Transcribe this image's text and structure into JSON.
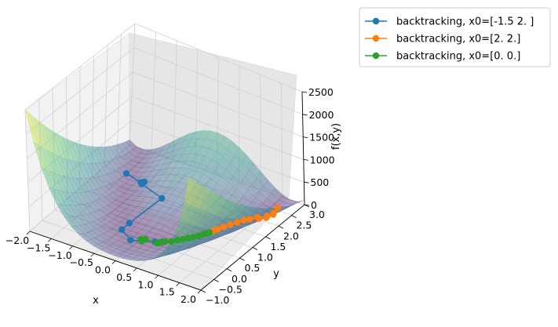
{
  "chart_data": {
    "type": "surface3d",
    "title": "",
    "function": "Rosenbrock",
    "surface_colormap": [
      "#440154",
      "#3b528b",
      "#21918c",
      "#5ec962",
      "#fde725"
    ],
    "x_axis": {
      "label": "x",
      "range": [
        -2.0,
        2.0
      ],
      "ticks": [
        "−2.0",
        "−1.5",
        "−1.0",
        "−0.5",
        "0.0",
        "0.5",
        "1.0",
        "1.5",
        "2.0"
      ]
    },
    "y_axis": {
      "label": "y",
      "range": [
        -1.0,
        3.0
      ],
      "ticks": [
        "−1.0",
        "−0.5",
        "0.0",
        "0.5",
        "1.0",
        "1.5",
        "2.0",
        "2.5",
        "3.0"
      ]
    },
    "z_axis": {
      "label": "f(x,y)",
      "range": [
        0,
        2500
      ],
      "ticks": [
        "0",
        "500",
        "1000",
        "1500",
        "2000",
        "2500"
      ]
    },
    "legend_position": "upper-right, outside",
    "series": [
      {
        "name": "backtracking, x0=[-1.5  2. ]",
        "color": "#1f77b4",
        "points": [
          [
            -1.5,
            2.0
          ],
          [
            -1.05,
            1.8
          ],
          [
            -0.98,
            1.82
          ],
          [
            -1.0,
            1.75
          ],
          [
            -0.3,
            1.35
          ],
          [
            -0.5,
            0.4
          ],
          [
            -0.5,
            0.1
          ],
          [
            -0.15,
            -0.15
          ],
          [
            0.05,
            -0.05
          ],
          [
            0.28,
            0.08
          ],
          [
            0.4,
            0.15
          ]
        ]
      },
      {
        "name": "backtracking, x0=[2. 2.]",
        "color": "#ff7f0e",
        "points": [
          [
            2.0,
            2.0
          ],
          [
            1.9,
            2.0
          ],
          [
            1.82,
            2.1
          ],
          [
            1.72,
            2.0
          ],
          [
            1.65,
            2.15
          ],
          [
            1.55,
            2.0
          ],
          [
            1.48,
            2.05
          ],
          [
            1.4,
            1.9
          ],
          [
            1.32,
            1.8
          ],
          [
            1.25,
            1.65
          ],
          [
            1.18,
            1.5
          ],
          [
            1.12,
            1.35
          ],
          [
            1.07,
            1.2
          ],
          [
            1.03,
            1.1
          ],
          [
            1.0,
            1.0
          ]
        ]
      },
      {
        "name": "backtracking, x0=[0. 0.]",
        "color": "#2ca02c",
        "points": [
          [
            0.0,
            0.0
          ],
          [
            0.05,
            -0.05
          ],
          [
            0.08,
            0.05
          ],
          [
            0.35,
            0.05
          ],
          [
            0.38,
            0.12
          ],
          [
            0.45,
            0.2
          ],
          [
            0.55,
            0.28
          ],
          [
            0.62,
            0.38
          ],
          [
            0.7,
            0.48
          ],
          [
            0.76,
            0.58
          ],
          [
            0.82,
            0.66
          ],
          [
            0.88,
            0.76
          ],
          [
            0.93,
            0.86
          ],
          [
            0.97,
            0.94
          ],
          [
            1.0,
            1.0
          ]
        ]
      }
    ]
  }
}
